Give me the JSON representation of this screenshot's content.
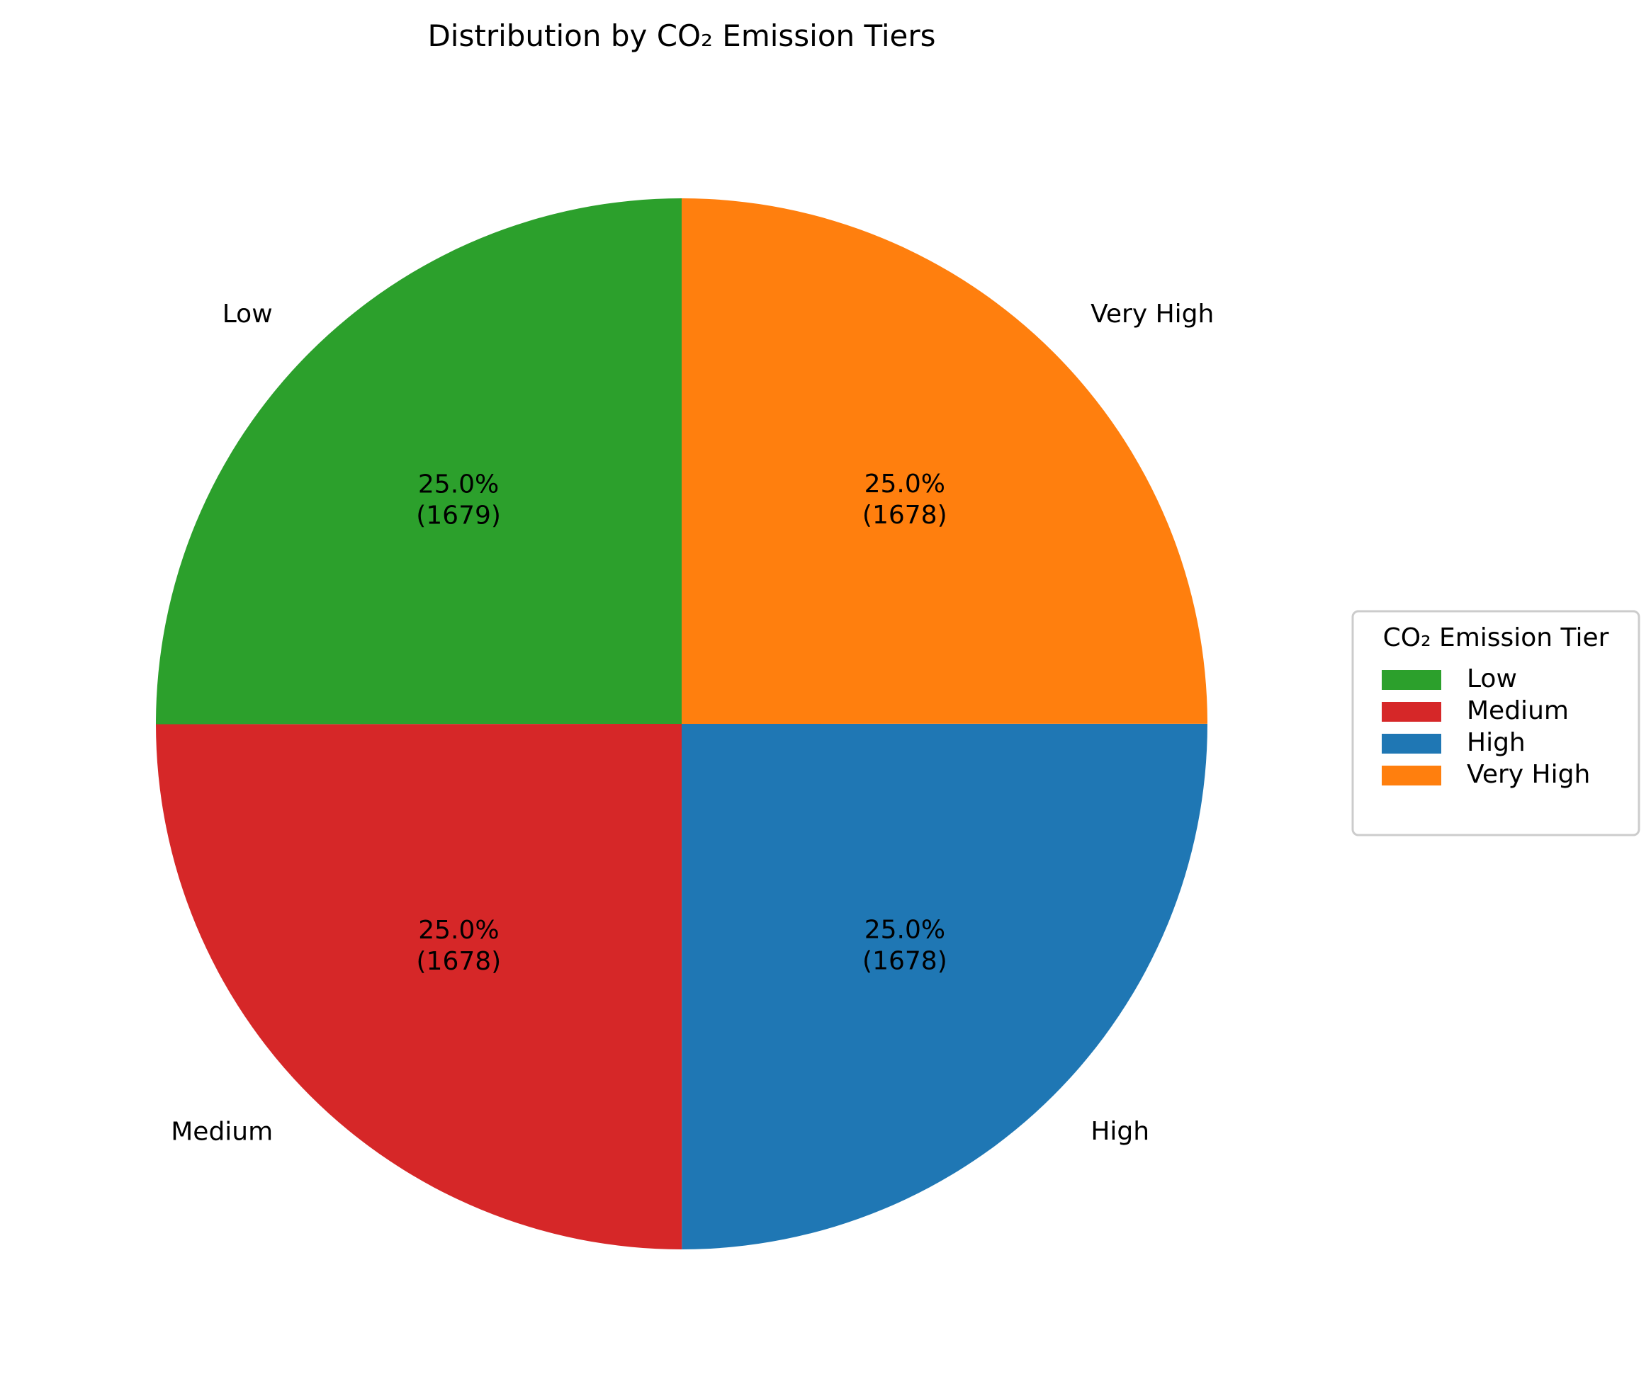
{
  "chart_data": {
    "type": "pie",
    "title": "Distribution by CO₂ Emission Tiers",
    "start_angle_deg": 90,
    "direction": "counterclockwise",
    "slices": [
      {
        "label": "Low",
        "value": 1679,
        "percent_label": "25.0%",
        "count_label": "(1679)",
        "color": "#2ca02c"
      },
      {
        "label": "Medium",
        "value": 1678,
        "percent_label": "25.0%",
        "count_label": "(1678)",
        "color": "#d62728"
      },
      {
        "label": "High",
        "value": 1678,
        "percent_label": "25.0%",
        "count_label": "(1678)",
        "color": "#1f77b4"
      },
      {
        "label": "Very High",
        "value": 1678,
        "percent_label": "25.0%",
        "count_label": "(1678)",
        "color": "#ff7f0e"
      }
    ],
    "legend": {
      "title": "CO₂ Emission Tier",
      "placement": "right",
      "entries": [
        "Low",
        "Medium",
        "High",
        "Very High"
      ]
    }
  }
}
